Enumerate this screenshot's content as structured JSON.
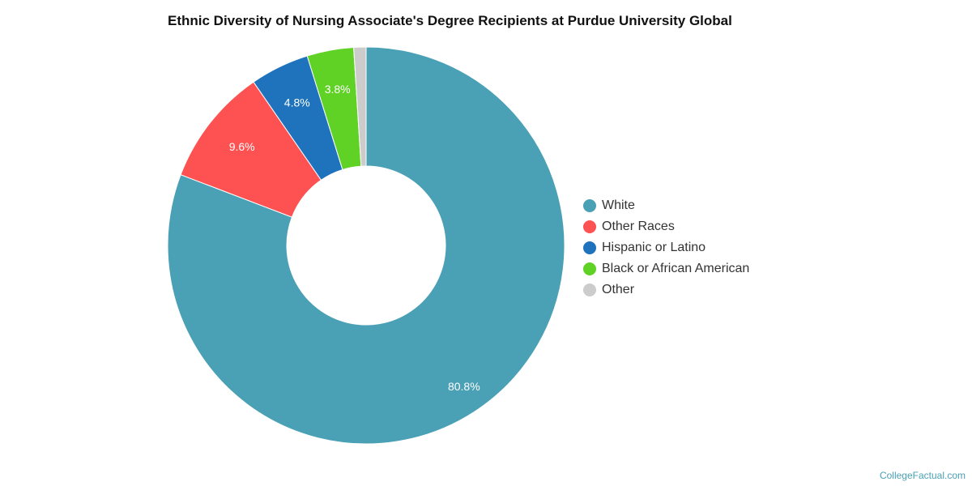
{
  "chart_data": {
    "type": "pie",
    "title": "Ethnic Diversity of Nursing Associate's Degree Recipients at Purdue University Global",
    "donut": true,
    "legend_position": "right",
    "slices": [
      {
        "name": "White",
        "value": 80.8,
        "label": "80.8%",
        "color": "#4aa0b5"
      },
      {
        "name": "Other Races",
        "value": 9.6,
        "label": "9.6%",
        "color": "#fe5151"
      },
      {
        "name": "Hispanic or Latino",
        "value": 4.8,
        "label": "4.8%",
        "color": "#1f73bc"
      },
      {
        "name": "Black or African American",
        "value": 3.8,
        "label": "3.8%",
        "color": "#60d226"
      },
      {
        "name": "Other",
        "value": 1.0,
        "label": "",
        "color": "#cccccc"
      }
    ]
  },
  "watermark": "CollegeFactual.com"
}
